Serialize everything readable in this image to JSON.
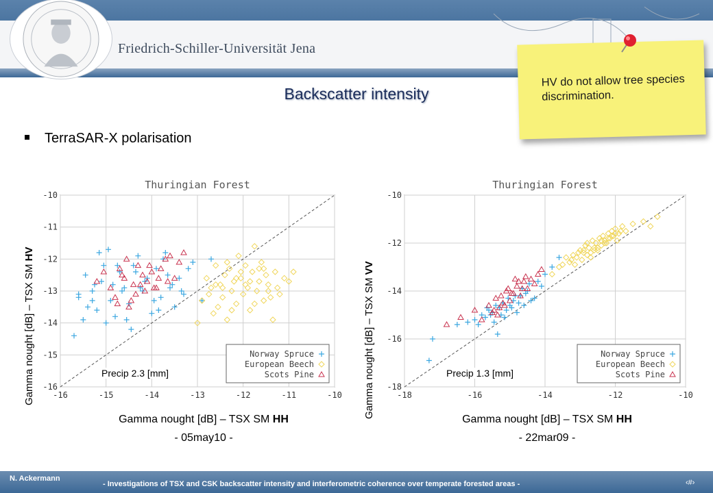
{
  "header": {
    "university": "Friedrich-Schiller-Universität Jena"
  },
  "slide_title": "Backscatter intensity",
  "bullet": "TerraSAR-X polarisation",
  "note": "HV do not allow tree species discrimination.",
  "footer": {
    "author": "N. Ackermann",
    "subtitle": "- Investigations of TSX and CSK backscatter intensity and interferometric coherence over temperate forested areas -",
    "page": "‹#›"
  },
  "colors": {
    "norway_spruce": "#3aa6e0",
    "european_beech": "#f0d65a",
    "scots_pine": "#c8324e",
    "title": "#1a2c5a",
    "note": "#f8f27a"
  },
  "chart_data": [
    {
      "type": "scatter",
      "title": "Thuringian Forest",
      "xlabel_main": "Gamma nought [dB] – TSX SM ",
      "xlabel_bold": "HH",
      "ylabel_main": "Gamma nought [dB] – TSX SM ",
      "ylabel_bold": "HV",
      "date": "- 05may10 -",
      "precip": "Precip 2.3 [mm]",
      "xlim": [
        -16,
        -10
      ],
      "ylim": [
        -16,
        -10
      ],
      "xticks": [
        "-16",
        "-15",
        "-14",
        "-13",
        "-12",
        "-11",
        "-10"
      ],
      "yticks": [
        "-10",
        "-11",
        "-12",
        "-13",
        "-14",
        "-15",
        "-16"
      ],
      "legend": "bottom-right",
      "series": [
        {
          "name": "Norway Spruce",
          "marker": "plus",
          "x": [
            -15.7,
            -15.6,
            -15.5,
            -15.4,
            -15.3,
            -15.25,
            -15.2,
            -15.1,
            -15.0,
            -14.95,
            -14.9,
            -14.8,
            -14.7,
            -14.6,
            -14.5,
            -14.45,
            -14.4,
            -14.3,
            -14.2,
            -14.1,
            -14.0,
            -13.9,
            -13.8,
            -13.7,
            -13.6,
            -13.5,
            -13.4,
            -13.3,
            -13.2,
            -13.1,
            -15.6,
            -15.45,
            -15.3,
            -15.05,
            -14.85,
            -14.65,
            -14.35,
            -14.15,
            -13.95,
            -13.75,
            -13.55,
            -13.35,
            -15.15,
            -14.75,
            -14.55,
            -14.25,
            -13.85,
            -13.65,
            -12.9,
            -12.7
          ],
          "y": [
            -14.4,
            -13.2,
            -13.9,
            -13.5,
            -13.0,
            -12.8,
            -13.6,
            -12.7,
            -14.0,
            -11.7,
            -13.3,
            -13.8,
            -12.4,
            -12.9,
            -13.4,
            -14.2,
            -12.2,
            -11.9,
            -13.0,
            -12.6,
            -13.7,
            -12.3,
            -13.2,
            -11.8,
            -12.9,
            -13.5,
            -12.6,
            -13.1,
            -12.3,
            -12.1,
            -13.1,
            -12.5,
            -13.3,
            -12.2,
            -12.8,
            -13.0,
            -12.4,
            -12.7,
            -13.3,
            -12.0,
            -12.8,
            -13.0,
            -11.8,
            -12.2,
            -13.9,
            -12.9,
            -13.6,
            -12.5,
            -13.3,
            -12.0
          ]
        },
        {
          "name": "European Beech",
          "marker": "diamond",
          "x": [
            -13.0,
            -12.9,
            -12.8,
            -12.7,
            -12.65,
            -12.6,
            -12.55,
            -12.5,
            -12.45,
            -12.4,
            -12.35,
            -12.3,
            -12.25,
            -12.2,
            -12.15,
            -12.1,
            -12.05,
            -12.0,
            -11.95,
            -11.9,
            -11.85,
            -11.8,
            -11.75,
            -11.7,
            -11.65,
            -11.6,
            -11.55,
            -11.5,
            -11.45,
            -11.4,
            -11.35,
            -11.3,
            -11.25,
            -11.2,
            -11.1,
            -11.0,
            -10.9,
            -12.75,
            -12.45,
            -12.25,
            -12.05,
            -11.85,
            -11.65,
            -11.45,
            -12.35,
            -11.95,
            -11.75,
            -12.15,
            -11.55,
            -12.6
          ],
          "y": [
            -14.0,
            -13.3,
            -12.6,
            -12.9,
            -13.7,
            -12.2,
            -13.5,
            -12.8,
            -13.2,
            -12.5,
            -13.9,
            -12.3,
            -13.0,
            -12.7,
            -13.4,
            -11.9,
            -12.6,
            -13.1,
            -12.2,
            -12.9,
            -13.6,
            -12.4,
            -11.6,
            -13.0,
            -12.7,
            -12.1,
            -13.3,
            -12.5,
            -12.8,
            -13.2,
            -13.9,
            -12.4,
            -12.9,
            -13.1,
            -12.6,
            -12.7,
            -12.4,
            -13.1,
            -12.9,
            -13.6,
            -12.4,
            -12.7,
            -12.3,
            -13.0,
            -12.1,
            -12.8,
            -13.4,
            -12.6,
            -12.3,
            -12.8
          ]
        },
        {
          "name": "Scots Pine",
          "marker": "triangle",
          "x": [
            -15.2,
            -15.05,
            -14.9,
            -14.8,
            -14.7,
            -14.6,
            -14.5,
            -14.4,
            -14.35,
            -14.3,
            -14.2,
            -14.15,
            -14.1,
            -14.0,
            -13.9,
            -13.8,
            -13.7,
            -13.6,
            -13.5,
            -13.4,
            -13.3,
            -14.65,
            -14.45,
            -14.25,
            -14.05,
            -13.85,
            -13.65,
            -14.55,
            -14.75,
            -13.95
          ],
          "y": [
            -12.7,
            -12.4,
            -12.9,
            -13.2,
            -12.3,
            -12.6,
            -13.5,
            -12.8,
            -13.1,
            -12.2,
            -12.5,
            -13.0,
            -12.7,
            -12.4,
            -12.9,
            -12.3,
            -12.0,
            -11.9,
            -12.6,
            -12.1,
            -11.8,
            -12.5,
            -13.3,
            -12.8,
            -12.2,
            -12.6,
            -12.7,
            -12.0,
            -13.4,
            -12.9
          ]
        }
      ]
    },
    {
      "type": "scatter",
      "title": "Thuringian Forest",
      "xlabel_main": "Gamma nought [dB] – TSX SM ",
      "xlabel_bold": "HH",
      "ylabel_main": "Gamma nought [dB] – TSX SM ",
      "ylabel_bold": "VV",
      "date": "- 22mar09 -",
      "precip": "Precip 1.3 [mm]",
      "xlim": [
        -18,
        -10
      ],
      "ylim": [
        -18,
        -10
      ],
      "xticks": [
        "-18",
        "-16",
        "-14",
        "-12",
        "-10"
      ],
      "yticks": [
        "-10",
        "-12",
        "-14",
        "-16",
        "-18"
      ],
      "legend": "bottom-right",
      "series": [
        {
          "name": "Norway Spruce",
          "marker": "plus",
          "x": [
            -17.3,
            -17.2,
            -16.5,
            -16.2,
            -16.0,
            -15.9,
            -15.8,
            -15.7,
            -15.6,
            -15.5,
            -15.45,
            -15.4,
            -15.3,
            -15.25,
            -15.2,
            -15.1,
            -15.05,
            -15.0,
            -14.9,
            -14.8,
            -14.7,
            -14.6,
            -14.5,
            -14.4,
            -14.3,
            -14.2,
            -14.1,
            -14.0,
            -13.8,
            -13.6,
            -15.35,
            -15.15,
            -14.95,
            -14.75,
            -14.55,
            -15.55,
            -15.65,
            -14.85,
            -14.65,
            -14.45
          ],
          "y": [
            -16.9,
            -16.0,
            -15.4,
            -15.3,
            -15.2,
            -15.4,
            -15.0,
            -15.1,
            -14.8,
            -14.9,
            -15.3,
            -14.6,
            -14.7,
            -15.0,
            -14.5,
            -14.8,
            -14.3,
            -14.6,
            -14.4,
            -14.9,
            -14.2,
            -14.6,
            -14.0,
            -14.4,
            -14.3,
            -13.6,
            -13.8,
            -13.3,
            -13.0,
            -12.6,
            -15.8,
            -15.1,
            -14.7,
            -14.5,
            -14.1,
            -15.0,
            -14.7,
            -14.2,
            -13.9,
            -13.7
          ]
        },
        {
          "name": "European Beech",
          "marker": "diamond",
          "x": [
            -13.8,
            -13.6,
            -13.5,
            -13.4,
            -13.3,
            -13.2,
            -13.1,
            -13.0,
            -12.95,
            -12.9,
            -12.85,
            -12.8,
            -12.75,
            -12.7,
            -12.65,
            -12.6,
            -12.55,
            -12.5,
            -12.45,
            -12.4,
            -12.35,
            -12.3,
            -12.25,
            -12.2,
            -12.15,
            -12.1,
            -12.05,
            -12.0,
            -11.9,
            -11.8,
            -11.7,
            -11.5,
            -11.2,
            -11.0,
            -10.8,
            -13.25,
            -13.05,
            -12.8,
            -12.6,
            -12.4,
            -12.2,
            -12.0,
            -12.7,
            -12.5,
            -12.3,
            -12.1,
            -11.95,
            -11.85,
            -12.9,
            -13.15
          ],
          "y": [
            -13.3,
            -13.0,
            -12.9,
            -12.6,
            -12.8,
            -12.5,
            -12.6,
            -12.3,
            -12.7,
            -12.4,
            -12.1,
            -12.5,
            -12.2,
            -12.4,
            -11.9,
            -12.3,
            -12.0,
            -12.2,
            -11.8,
            -12.1,
            -11.7,
            -11.9,
            -12.0,
            -11.6,
            -11.8,
            -11.5,
            -11.7,
            -11.4,
            -11.6,
            -11.3,
            -11.5,
            -11.2,
            -11.1,
            -11.3,
            -10.9,
            -12.7,
            -12.4,
            -12.0,
            -12.2,
            -11.9,
            -11.8,
            -11.6,
            -12.6,
            -12.3,
            -12.0,
            -11.7,
            -11.9,
            -11.5,
            -12.3,
            -12.9
          ]
        },
        {
          "name": "Scots Pine",
          "marker": "triangle",
          "x": [
            -16.8,
            -16.4,
            -16.0,
            -15.8,
            -15.6,
            -15.5,
            -15.4,
            -15.3,
            -15.2,
            -15.1,
            -15.0,
            -14.9,
            -14.8,
            -14.7,
            -14.6,
            -14.5,
            -14.4,
            -14.3,
            -14.2,
            -14.1,
            -15.45,
            -15.25,
            -15.05,
            -14.85,
            -14.65,
            -15.35,
            -15.15,
            -14.95,
            -14.75,
            -14.55
          ],
          "y": [
            -15.4,
            -15.1,
            -14.8,
            -15.2,
            -14.6,
            -14.9,
            -14.3,
            -14.7,
            -14.5,
            -14.0,
            -14.4,
            -14.1,
            -13.8,
            -14.2,
            -13.6,
            -13.9,
            -13.5,
            -13.7,
            -13.3,
            -13.1,
            -14.8,
            -14.2,
            -13.9,
            -13.5,
            -13.9,
            -15.0,
            -14.6,
            -14.1,
            -13.6,
            -13.4
          ]
        }
      ]
    }
  ]
}
